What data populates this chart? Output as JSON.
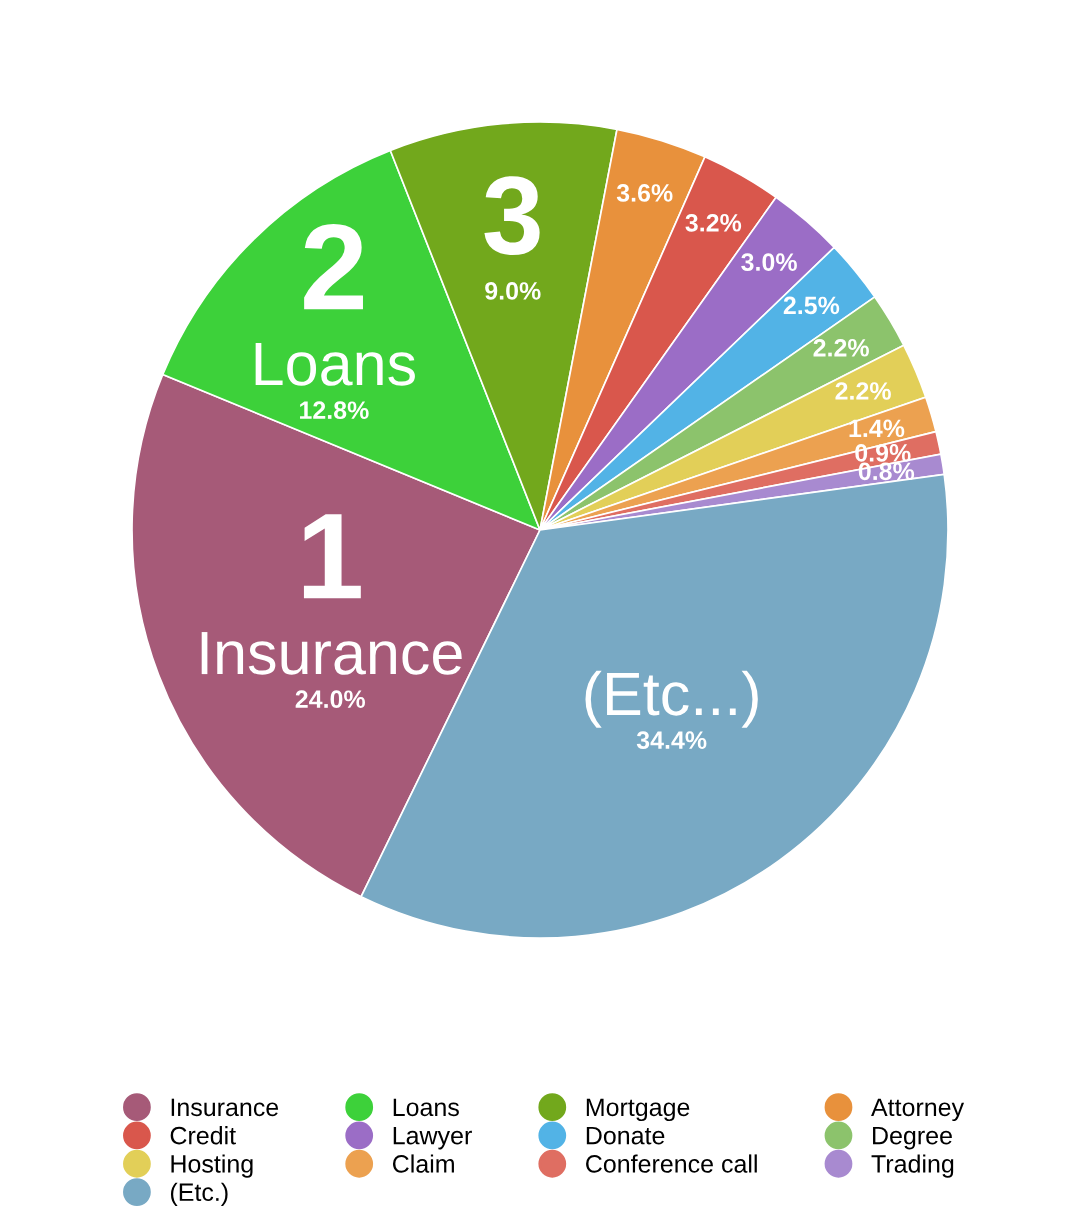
{
  "chart_data": {
    "type": "pie",
    "categories": [
      "Insurance",
      "Loans",
      "Mortgage",
      "Attorney",
      "Credit",
      "Lawyer",
      "Donate",
      "Degree",
      "Hosting",
      "Claim",
      "Conference call",
      "Trading",
      "(Etc.)"
    ],
    "values": [
      24.0,
      12.8,
      9.0,
      3.6,
      3.2,
      3.0,
      2.5,
      2.2,
      2.2,
      1.4,
      0.9,
      0.8,
      34.4
    ],
    "colors": [
      "#a65a78",
      "#3dd13a",
      "#72a81c",
      "#e8913c",
      "#d9574c",
      "#9b6dc6",
      "#52b3e6",
      "#8cc36c",
      "#e2cf58",
      "#eca150",
      "#df6e62",
      "#a88ad0",
      "#78a9c4"
    ],
    "value_labels": [
      "24.0%",
      "12.8%",
      "9.0%",
      "3.6%",
      "3.2%",
      "3.0%",
      "2.5%",
      "2.2%",
      "2.2%",
      "1.4%",
      "0.9%",
      "0.8%",
      "34.4%"
    ],
    "annotations": [
      {
        "text": "1",
        "x": "Insurance"
      },
      {
        "text": "Insurance",
        "x": "Insurance"
      },
      {
        "text": "2",
        "x": "Loans"
      },
      {
        "text": "Loans",
        "x": "Loans"
      },
      {
        "text": "3",
        "x": "Mortgage"
      },
      {
        "text": "(Etc...)",
        "x": "(Etc.)"
      }
    ],
    "legend": "bottom"
  }
}
